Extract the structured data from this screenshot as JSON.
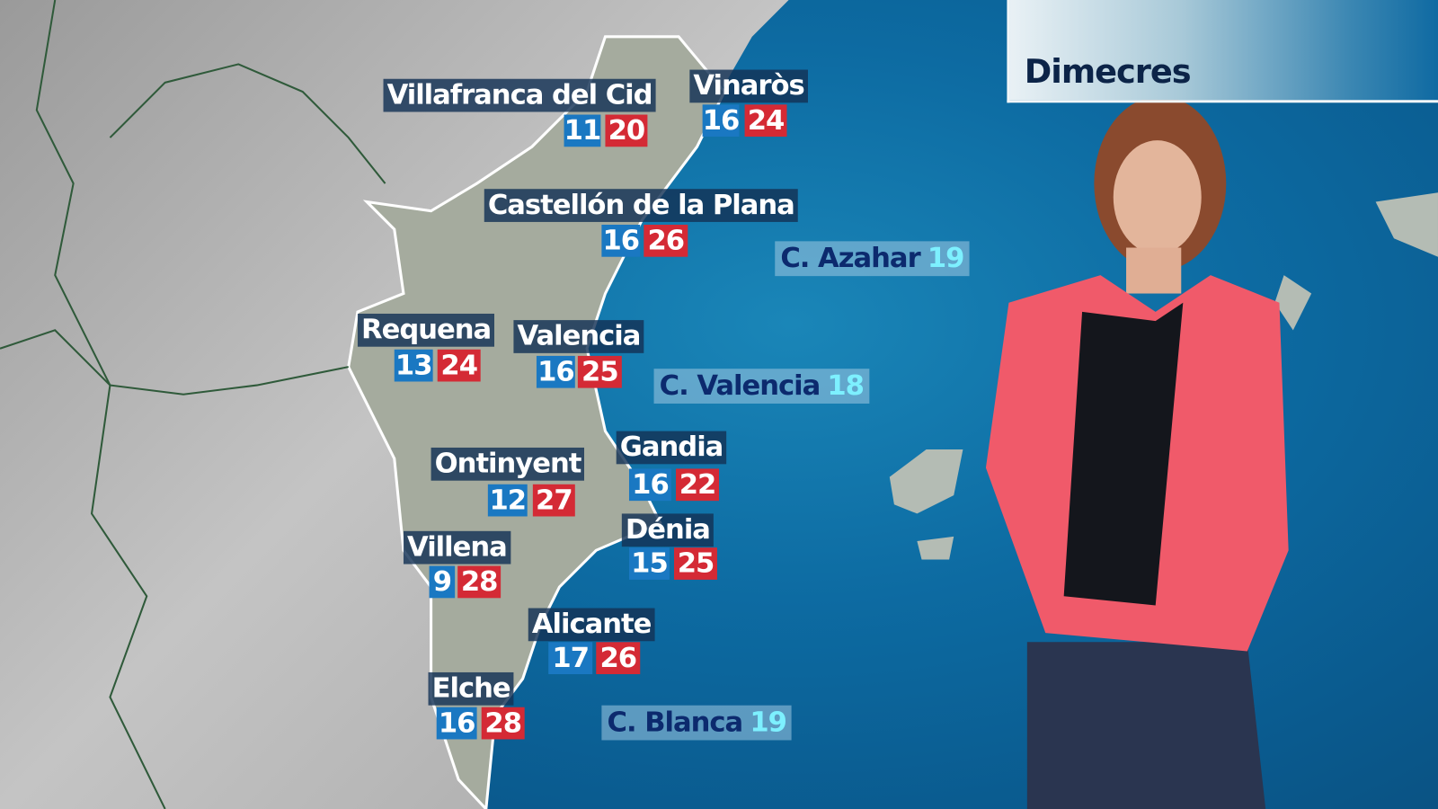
{
  "day_label": "Dimecres",
  "colors": {
    "min_temp_bg": "#1a78c2",
    "max_temp_bg": "#d42a35",
    "sea": "#0d6ba2",
    "jacket": "#f05a6a"
  },
  "cities": [
    {
      "name": "Villafranca del Cid",
      "min": "11",
      "max": "20"
    },
    {
      "name": "Vinaròs",
      "min": "16",
      "max": "24"
    },
    {
      "name": "Castellón de la Plana",
      "min": "16",
      "max": "26"
    },
    {
      "name": "Requena",
      "min": "13",
      "max": "24"
    },
    {
      "name": "Valencia",
      "min": "16",
      "max": "25"
    },
    {
      "name": "Gandia",
      "min": "16",
      "max": "22"
    },
    {
      "name": "Ontinyent",
      "min": "12",
      "max": "27"
    },
    {
      "name": "Dénia",
      "min": "15",
      "max": "25"
    },
    {
      "name": "Villena",
      "min": "9",
      "max": "28"
    },
    {
      "name": "Alicante",
      "min": "17",
      "max": "26"
    },
    {
      "name": "Elche",
      "min": "16",
      "max": "28"
    }
  ],
  "sea_temps": [
    {
      "name": "C. Azahar",
      "temp": "19"
    },
    {
      "name": "C. Valencia",
      "temp": "18"
    },
    {
      "name": "C. Blanca",
      "temp": "19"
    }
  ]
}
